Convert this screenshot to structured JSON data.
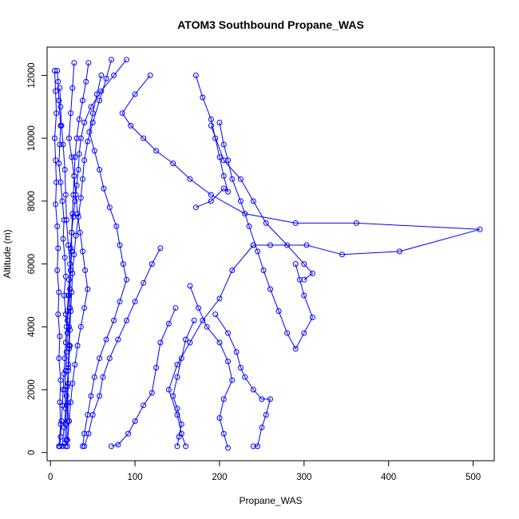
{
  "chart_data": {
    "type": "line",
    "title": "ATOM3 Southbound Propane_WAS",
    "xlabel": "Propane_WAS",
    "ylabel": "Altitude (m)",
    "xlim": [
      -4,
      525
    ],
    "ylim": [
      -260,
      12900
    ],
    "x_ticks": [
      0,
      100,
      200,
      300,
      400,
      500
    ],
    "y_ticks": [
      0,
      2000,
      4000,
      6000,
      8000,
      10000,
      12000
    ],
    "grid": false,
    "legend": "none",
    "series_color": "#0000ff",
    "markers": "open-circle",
    "series": [
      {
        "values": [
          [
            8,
            12150
          ],
          [
            9,
            11800
          ],
          [
            10,
            11200
          ],
          [
            12,
            10400
          ],
          [
            11,
            9800
          ],
          [
            10,
            9200
          ],
          [
            12,
            8600
          ],
          [
            14,
            8000
          ],
          [
            16,
            7400
          ],
          [
            15,
            6800
          ],
          [
            17,
            6200
          ],
          [
            18,
            5600
          ],
          [
            16,
            5000
          ],
          [
            18,
            4400
          ],
          [
            20,
            3800
          ],
          [
            19,
            3200
          ],
          [
            18,
            2600
          ],
          [
            17,
            2000
          ],
          [
            18,
            1400
          ],
          [
            16,
            800
          ],
          [
            14,
            200
          ]
        ]
      },
      {
        "values": [
          [
            20,
            200
          ],
          [
            22,
            1000
          ],
          [
            19,
            1800
          ],
          [
            21,
            2600
          ],
          [
            23,
            3400
          ],
          [
            20,
            4200
          ],
          [
            22,
            5000
          ],
          [
            24,
            5800
          ],
          [
            21,
            6600
          ],
          [
            19,
            7400
          ],
          [
            18,
            8200
          ],
          [
            17,
            9000
          ],
          [
            15,
            9800
          ],
          [
            13,
            10400
          ],
          [
            12,
            11000
          ],
          [
            11,
            11600
          ]
        ]
      },
      {
        "values": [
          [
            28,
            12400
          ],
          [
            26,
            11600
          ],
          [
            24,
            10800
          ],
          [
            22,
            10000
          ],
          [
            25,
            9400
          ],
          [
            28,
            8800
          ],
          [
            30,
            8200
          ],
          [
            32,
            7600
          ],
          [
            35,
            7000
          ],
          [
            38,
            6400
          ],
          [
            41,
            5800
          ],
          [
            44,
            5200
          ],
          [
            40,
            4600
          ],
          [
            36,
            4000
          ],
          [
            32,
            3400
          ],
          [
            29,
            2800
          ],
          [
            26,
            2200
          ],
          [
            24,
            1600
          ],
          [
            22,
            1000
          ],
          [
            20,
            400
          ]
        ]
      },
      {
        "values": [
          [
            60,
            12000
          ],
          [
            55,
            11400
          ],
          [
            50,
            10800
          ],
          [
            46,
            10200
          ],
          [
            52,
            9600
          ],
          [
            58,
            9000
          ],
          [
            63,
            8400
          ],
          [
            70,
            7800
          ],
          [
            78,
            7200
          ],
          [
            82,
            6600
          ],
          [
            86,
            6000
          ],
          [
            90,
            5500
          ],
          [
            82,
            4800
          ],
          [
            75,
            4200
          ],
          [
            66,
            3600
          ],
          [
            58,
            3000
          ],
          [
            52,
            2400
          ],
          [
            48,
            1800
          ],
          [
            44,
            1200
          ],
          [
            40,
            600
          ],
          [
            38,
            200
          ]
        ]
      },
      {
        "values": [
          [
            118,
            12000
          ],
          [
            100,
            11400
          ],
          [
            85,
            10800
          ],
          [
            95,
            10400
          ],
          [
            110,
            10000
          ],
          [
            125,
            9600
          ],
          [
            145,
            9200
          ],
          [
            165,
            8700
          ],
          [
            190,
            8200
          ],
          [
            230,
            7600
          ],
          [
            290,
            7300
          ],
          [
            362,
            7300
          ],
          [
            508,
            7100
          ],
          [
            413,
            6400
          ],
          [
            345,
            6300
          ],
          [
            303,
            6600
          ],
          [
            260,
            6600
          ],
          [
            240,
            6600
          ]
        ]
      },
      {
        "values": [
          [
            240,
            6600
          ],
          [
            215,
            5800
          ],
          [
            200,
            4900
          ],
          [
            180,
            4200
          ],
          [
            165,
            3500
          ],
          [
            150,
            2800
          ],
          [
            140,
            2000
          ],
          [
            150,
            1200
          ],
          [
            155,
            600
          ],
          [
            160,
            200
          ]
        ]
      },
      {
        "values": [
          [
            172,
            12000
          ],
          [
            180,
            11300
          ],
          [
            190,
            10600
          ],
          [
            195,
            10000
          ],
          [
            200,
            9400
          ],
          [
            205,
            8800
          ],
          [
            210,
            8300
          ],
          [
            205,
            8400
          ],
          [
            190,
            8000
          ],
          [
            172,
            7800
          ]
        ]
      },
      {
        "values": [
          [
            200,
            10500
          ],
          [
            205,
            9800
          ],
          [
            210,
            9300
          ],
          [
            215,
            8700
          ],
          [
            225,
            8000
          ],
          [
            235,
            7200
          ],
          [
            245,
            6400
          ],
          [
            252,
            5800
          ],
          [
            260,
            5200
          ],
          [
            270,
            4500
          ],
          [
            280,
            3800
          ],
          [
            290,
            3300
          ],
          [
            300,
            3800
          ],
          [
            310,
            4300
          ],
          [
            300,
            5000
          ],
          [
            295,
            5500
          ],
          [
            290,
            6000
          ]
        ]
      },
      {
        "values": [
          [
            190,
            10400
          ],
          [
            205,
            9300
          ],
          [
            225,
            8700
          ],
          [
            240,
            8000
          ],
          [
            255,
            7300
          ],
          [
            280,
            6600
          ],
          [
            300,
            6000
          ],
          [
            310,
            5700
          ],
          [
            300,
            5500
          ]
        ]
      },
      {
        "values": [
          [
            195,
            4400
          ],
          [
            210,
            3800
          ],
          [
            220,
            3200
          ],
          [
            225,
            2700
          ],
          [
            230,
            2400
          ],
          [
            240,
            2000
          ],
          [
            250,
            1700
          ],
          [
            260,
            1700
          ],
          [
            255,
            1200
          ],
          [
            250,
            800
          ],
          [
            245,
            200
          ],
          [
            240,
            200
          ]
        ]
      },
      {
        "values": [
          [
            170,
            4200
          ],
          [
            160,
            3600
          ],
          [
            155,
            3000
          ],
          [
            150,
            2400
          ],
          [
            145,
            1800
          ],
          [
            150,
            1400
          ],
          [
            155,
            900
          ],
          [
            152,
            500
          ],
          [
            150,
            200
          ]
        ]
      },
      {
        "values": [
          [
            165,
            5300
          ],
          [
            175,
            4600
          ],
          [
            185,
            4000
          ],
          [
            200,
            3500
          ],
          [
            210,
            2900
          ],
          [
            215,
            2300
          ],
          [
            205,
            1700
          ],
          [
            200,
            1100
          ],
          [
            205,
            600
          ],
          [
            210,
            150
          ]
        ]
      },
      {
        "values": [
          [
            130,
            6500
          ],
          [
            120,
            6000
          ],
          [
            110,
            5400
          ],
          [
            100,
            4800
          ],
          [
            90,
            4200
          ],
          [
            80,
            3600
          ],
          [
            70,
            3000
          ],
          [
            62,
            2400
          ],
          [
            58,
            1800
          ],
          [
            50,
            1200
          ],
          [
            45,
            600
          ],
          [
            40,
            200
          ]
        ]
      },
      {
        "values": [
          [
            148,
            4600
          ],
          [
            140,
            4100
          ],
          [
            130,
            3500
          ],
          [
            125,
            2700
          ],
          [
            120,
            1900
          ],
          [
            110,
            1500
          ],
          [
            100,
            1000
          ],
          [
            92,
            600
          ],
          [
            80,
            250
          ],
          [
            72,
            200
          ]
        ]
      },
      {
        "values": [
          [
            90,
            12500
          ],
          [
            75,
            12000
          ],
          [
            60,
            11500
          ],
          [
            48,
            11000
          ],
          [
            40,
            10500
          ],
          [
            36,
            10000
          ],
          [
            34,
            9500
          ],
          [
            33,
            9000
          ],
          [
            31,
            8500
          ],
          [
            29,
            8000
          ],
          [
            27,
            7500
          ],
          [
            25,
            7000
          ],
          [
            24,
            6500
          ],
          [
            23,
            6000
          ],
          [
            22,
            5500
          ],
          [
            21,
            5000
          ],
          [
            20,
            4500
          ],
          [
            19,
            4000
          ],
          [
            18,
            3500
          ],
          [
            17,
            3000
          ],
          [
            16,
            2500
          ],
          [
            15,
            2000
          ],
          [
            14,
            1500
          ],
          [
            13,
            1000
          ],
          [
            12,
            500
          ],
          [
            11,
            200
          ]
        ]
      },
      {
        "values": [
          [
            5,
            12150
          ],
          [
            6,
            11500
          ],
          [
            7,
            10800
          ],
          [
            5,
            10000
          ],
          [
            6,
            9300
          ],
          [
            7,
            8600
          ],
          [
            6,
            7900
          ],
          [
            8,
            7200
          ],
          [
            9,
            6500
          ],
          [
            8,
            5800
          ],
          [
            10,
            5100
          ],
          [
            9,
            4400
          ],
          [
            11,
            3700
          ],
          [
            10,
            3000
          ],
          [
            12,
            2300
          ],
          [
            11,
            1600
          ],
          [
            12,
            900
          ],
          [
            10,
            200
          ]
        ]
      },
      {
        "values": [
          [
            45,
            12400
          ],
          [
            42,
            11800
          ],
          [
            38,
            11200
          ],
          [
            34,
            10600
          ],
          [
            31,
            10000
          ],
          [
            29,
            9400
          ],
          [
            28,
            8800
          ],
          [
            27,
            8200
          ],
          [
            26,
            7600
          ],
          [
            25,
            7000
          ],
          [
            25,
            6400
          ],
          [
            24,
            5800
          ],
          [
            23,
            5200
          ],
          [
            23,
            4600
          ],
          [
            22,
            4000
          ],
          [
            22,
            3400
          ],
          [
            21,
            2800
          ],
          [
            21,
            2200
          ],
          [
            20,
            1600
          ],
          [
            20,
            1000
          ],
          [
            19,
            400
          ],
          [
            18,
            200
          ]
        ]
      },
      {
        "values": [
          [
            72,
            12500
          ],
          [
            66,
            11900
          ],
          [
            58,
            11200
          ],
          [
            50,
            10500
          ],
          [
            44,
            9900
          ],
          [
            40,
            9300
          ],
          [
            38,
            8700
          ],
          [
            36,
            8100
          ],
          [
            33,
            7500
          ],
          [
            30,
            6900
          ],
          [
            28,
            6300
          ],
          [
            26,
            5700
          ],
          [
            25,
            5100
          ],
          [
            24,
            4500
          ],
          [
            23,
            3900
          ],
          [
            22,
            3300
          ],
          [
            21,
            2700
          ],
          [
            20,
            2100
          ],
          [
            19,
            1500
          ],
          [
            18,
            900
          ],
          [
            17,
            300
          ]
        ]
      }
    ]
  }
}
